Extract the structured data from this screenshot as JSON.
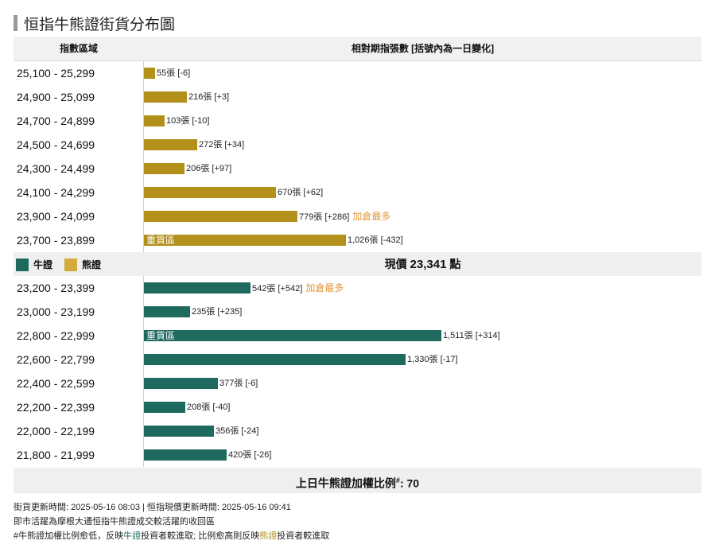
{
  "title": "恒指牛熊證街貨分布圖",
  "header": {
    "col1": "指數區域",
    "col2": "相對期指張數 [括號內為一日變化]"
  },
  "legend": {
    "bull": "牛證",
    "bear": "熊證"
  },
  "colors": {
    "bull": "#1e6a5e",
    "bear": "#b2901a",
    "highlight": "#e0953a"
  },
  "current_price": {
    "prefix": "現價",
    "value": "23,341",
    "suffix": "點"
  },
  "footer_ratio": {
    "label": "上日牛熊證加權比例",
    "sup": "#",
    "sep": ":",
    "value": "70"
  },
  "notes": {
    "line1": "街貨更新時間: 2025-05-16 08:03  |  恒指現價更新時間: 2025-05-16 09:41",
    "line2": "即市活躍為摩根大通恒指牛熊證成交較活躍的收回區",
    "line3_a": "#牛熊證加權比例愈低，反映",
    "line3_b": "牛證",
    "line3_c": "投資者較進取; 比例愈高則反映",
    "line3_d": "熊證",
    "line3_e": "投資者較進取"
  },
  "chart_data": {
    "type": "bar",
    "orientation": "horizontal",
    "title": "恒指牛熊證街貨分布圖",
    "xlabel": "相對期指張數 [括號內為一日變化]",
    "ylabel": "指數區域",
    "series": [
      {
        "name": "熊證",
        "rows": [
          {
            "range": "25,100 - 25,299",
            "value": 55,
            "text": "55張 [-6]",
            "tag": "",
            "heavy": ""
          },
          {
            "range": "24,900 - 25,099",
            "value": 216,
            "text": "216張 [+3]",
            "tag": "",
            "heavy": ""
          },
          {
            "range": "24,700 - 24,899",
            "value": 103,
            "text": "103張 [-10]",
            "tag": "",
            "heavy": ""
          },
          {
            "range": "24,500 - 24,699",
            "value": 272,
            "text": "272張 [+34]",
            "tag": "",
            "heavy": ""
          },
          {
            "range": "24,300 - 24,499",
            "value": 206,
            "text": "206張 [+97]",
            "tag": "",
            "heavy": ""
          },
          {
            "range": "24,100 - 24,299",
            "value": 670,
            "text": "670張 [+62]",
            "tag": "",
            "heavy": ""
          },
          {
            "range": "23,900 - 24,099",
            "value": 779,
            "text": "779張 [+286]",
            "tag": "加倉最多",
            "heavy": ""
          },
          {
            "range": "23,700 - 23,899",
            "value": 1026,
            "text": "1,026張 [-432]",
            "tag": "",
            "heavy": "重貨區"
          }
        ]
      },
      {
        "name": "牛證",
        "rows": [
          {
            "range": "23,200 - 23,399",
            "value": 542,
            "text": "542張 [+542]",
            "tag": "加倉最多",
            "heavy": ""
          },
          {
            "range": "23,000 - 23,199",
            "value": 235,
            "text": "235張 [+235]",
            "tag": "",
            "heavy": ""
          },
          {
            "range": "22,800 - 22,999",
            "value": 1511,
            "text": "1,511張 [+314]",
            "tag": "",
            "heavy": "重貨區"
          },
          {
            "range": "22,600 - 22,799",
            "value": 1330,
            "text": "1,330張 [-17]",
            "tag": "",
            "heavy": ""
          },
          {
            "range": "22,400 - 22,599",
            "value": 377,
            "text": "377張 [-6]",
            "tag": "",
            "heavy": ""
          },
          {
            "range": "22,200 - 22,399",
            "value": 208,
            "text": "208張 [-40]",
            "tag": "",
            "heavy": ""
          },
          {
            "range": "22,000 - 22,199",
            "value": 356,
            "text": "356張 [-24]",
            "tag": "",
            "heavy": ""
          },
          {
            "range": "21,800 - 21,999",
            "value": 420,
            "text": "420張 [-26]",
            "tag": "",
            "heavy": ""
          }
        ]
      }
    ]
  }
}
